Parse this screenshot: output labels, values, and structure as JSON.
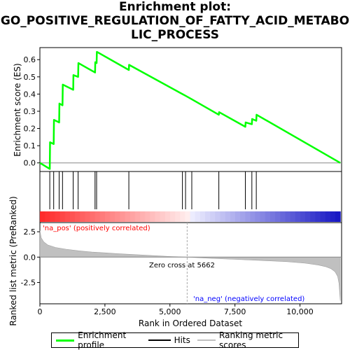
{
  "title_lines": [
    "Enrichment plot:",
    "GO_POSITIVE_REGULATION_OF_FATTY_ACID_METABO",
    "LIC_PROCESS"
  ],
  "legend": {
    "enrichment_label": "Enrichment profile",
    "hits_label": "Hits",
    "ranking_label": "Ranking metric scores"
  },
  "colors": {
    "enrichment": "#00ff00",
    "hits": "#000000",
    "ranking_fill": "#c0c0c0",
    "pos_label": "#ff0000",
    "neg_label": "#0000ff"
  },
  "annotations": {
    "pos_label": "'na_pos' (positively correlated)",
    "neg_label": "'na_neg' (negatively correlated)",
    "zero_cross": "Zero cross at 5662"
  },
  "chart_data": {
    "type": "line",
    "xlabel": "Rank in Ordered Dataset",
    "x_ticks": [
      0,
      2500,
      5000,
      7500,
      10000
    ],
    "x_tick_labels": [
      "0",
      "2,500",
      "5,000",
      "7,500",
      "10,000"
    ],
    "xlim": [
      0,
      11600
    ],
    "n_genes": 11550,
    "zero_cross": 5662,
    "es_panel": {
      "ylabel": "Enrichment score (ES)",
      "ylim": [
        -0.05,
        0.67
      ],
      "y_ticks": [
        0.0,
        0.1,
        0.2,
        0.3,
        0.4,
        0.5,
        0.6
      ],
      "y_tick_labels": [
        "0.0",
        "0.1",
        "0.2",
        "0.3",
        "0.4",
        "0.5",
        "0.6"
      ],
      "series": [
        {
          "x": [
            0,
            380,
            390,
            530,
            540,
            740,
            750,
            870,
            880,
            1280,
            1290,
            1470,
            1480,
            2120,
            2130,
            2180,
            2190,
            3420,
            3430,
            5480,
            5600,
            5840,
            6880,
            6890,
            7900,
            7910,
            8150,
            8160,
            8320,
            8330,
            11550
          ],
          "y": [
            0.0,
            -0.035,
            0.12,
            0.11,
            0.25,
            0.235,
            0.345,
            0.335,
            0.455,
            0.425,
            0.51,
            0.5,
            0.58,
            0.525,
            0.585,
            0.58,
            0.645,
            0.54,
            0.57,
            0.4,
            0.39,
            0.37,
            0.28,
            0.295,
            0.21,
            0.235,
            0.225,
            0.255,
            0.245,
            0.28,
            0.0
          ]
        }
      ]
    },
    "hits": [
      380,
      530,
      740,
      870,
      1280,
      1470,
      2120,
      2180,
      3420,
      5480,
      5600,
      5840,
      6880,
      7900,
      8150,
      8320
    ],
    "ranking_panel": {
      "ylabel": "Ranked list metric (PreRanked)",
      "ylim": [
        -4.6,
        3.4
      ],
      "y_ticks": [
        -2.5,
        0.0,
        2.5
      ],
      "y_tick_labels": [
        "-2.5",
        "0.0",
        "2.5"
      ],
      "series": [
        {
          "x": [
            0,
            50,
            150,
            300,
            600,
            1000,
            1500,
            2000,
            2500,
            3000,
            3500,
            4000,
            4500,
            5000,
            5662,
            6500,
            7500,
            8500,
            9500,
            10200,
            10700,
            11000,
            11200,
            11350,
            11450,
            11500,
            11550
          ],
          "y": [
            2.6,
            1.9,
            1.5,
            1.2,
            0.95,
            0.78,
            0.62,
            0.5,
            0.42,
            0.34,
            0.27,
            0.2,
            0.13,
            0.06,
            0.0,
            -0.12,
            -0.22,
            -0.33,
            -0.45,
            -0.6,
            -0.78,
            -0.95,
            -1.15,
            -1.45,
            -1.9,
            -2.6,
            -4.3
          ]
        }
      ]
    }
  }
}
